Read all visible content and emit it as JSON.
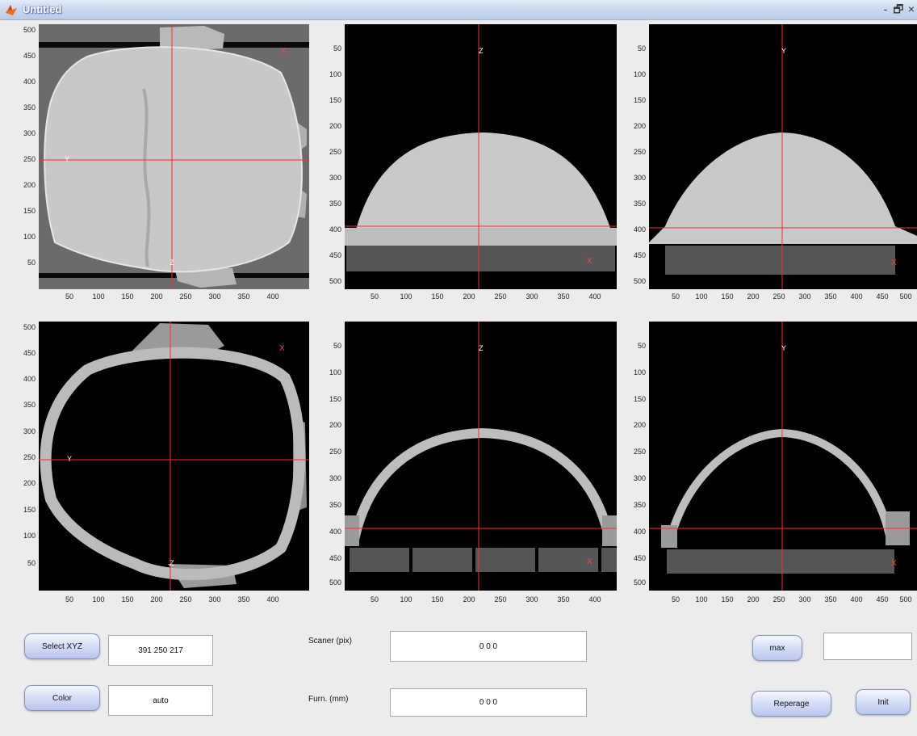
{
  "window": {
    "title": "Untitled",
    "controls": {
      "minimize": "-",
      "restore": "🗗",
      "close": "×"
    }
  },
  "axes": {
    "left_y_ticks": [
      "500",
      "450",
      "400",
      "350",
      "300",
      "250",
      "200",
      "150",
      "100",
      "50"
    ],
    "left_x_ticks": [
      "50",
      "100",
      "150",
      "200",
      "250",
      "300",
      "350",
      "400"
    ],
    "middle_y_ticks": [
      "50",
      "100",
      "150",
      "200",
      "250",
      "300",
      "350",
      "400",
      "450",
      "500"
    ],
    "middle_x_ticks": [
      "50",
      "100",
      "150",
      "200",
      "250",
      "300",
      "350",
      "400"
    ],
    "right_y_ticks": [
      "50",
      "100",
      "150",
      "200",
      "250",
      "300",
      "350",
      "400",
      "450",
      "500"
    ],
    "right_x_ticks": [
      "50",
      "100",
      "150",
      "200",
      "250",
      "300",
      "350",
      "400",
      "450",
      "500"
    ]
  },
  "overlay_labels": {
    "top_left": {
      "y": "Y",
      "z": "Z",
      "x": "X"
    },
    "top_middle": {
      "z": "Z",
      "x": "X"
    },
    "top_right": {
      "y": "Y",
      "x": "X"
    },
    "bottom_left": {
      "y": "Y",
      "z": "Z",
      "x": "X"
    },
    "bottom_middle": {
      "z": "Z",
      "x": "X"
    },
    "bottom_right": {
      "y": "Y",
      "x": "X"
    }
  },
  "controls": {
    "select_xyz_label": "Select XYZ",
    "select_xyz_value": "391  250  217",
    "color_label": "Color",
    "color_value": "auto",
    "scaner_label": "Scaner (pix)",
    "scaner_value": "0 0 0",
    "furn_label": "Furn.  (mm)",
    "furn_value": "0 0 0",
    "max_label": "max",
    "max_value": "",
    "reperage_label": "Reperage",
    "init_label": "Init"
  },
  "colors": {
    "crosshair": "#ff2a2a",
    "background": "#ececec",
    "button_face": "#d8e0f7"
  }
}
